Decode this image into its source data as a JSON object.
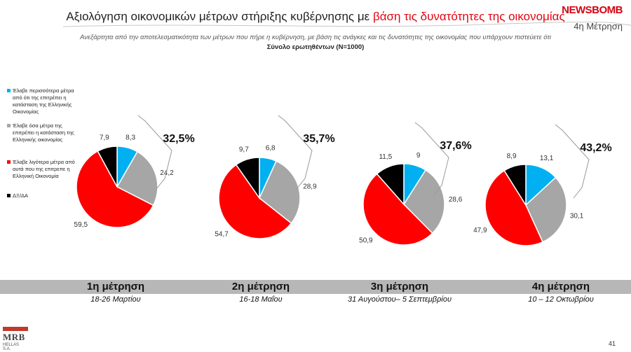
{
  "header": {
    "title_part1": "Αξιολόγηση οικονομικών μέτρων στήριξης κυβέρνησης με",
    "title_part2": "βάση τις δυνατότητες της  οικονομίας",
    "brand": "NEWSBOMB",
    "measurement_tag": "4η Μέτρηση",
    "subtitle": "Ανεξάρτητα από την αποτελεσματικότητα των μέτρων που πήρε η κυβέρνηση, με βάση τις ανάγκες και τις δυνατότητες της  οικονομίας που υπάρχουν  πιστεύετε ότι",
    "base": "Σύνολο ερωτηθέντων (N=1000)"
  },
  "legend": [
    {
      "label": "Έλαβε περισσότερα μέτρα από ότι της επιτρέπει η κατάσταση της Ελληνικής Οικονομίας",
      "color": "#00b0f0"
    },
    {
      "label": "Έλαβε όσα μέτρα της επιτρέπει η κατάσταση της Ελληνικής οικονομίας",
      "color": "#a6a6a6"
    },
    {
      "label": "Έλαβε λιγότερα μέτρα από αυτά που της επιτρεπε η Ελληνική Οικονομία",
      "color": "#ff0000"
    },
    {
      "label": "ΔΞ/ΔΑ",
      "color": "#000000"
    }
  ],
  "chart_data": [
    {
      "type": "pie",
      "categories": [
        "Έλαβε περισσότερα μέτρα",
        "Έλαβε όσα μέτρα",
        "Έλαβε λιγότερα μέτρα",
        "ΔΞ/ΔΑ"
      ],
      "values": [
        8.3,
        24.2,
        59.5,
        7.9
      ],
      "labels": [
        "8,3",
        "24,2",
        "59,5",
        "7,9"
      ],
      "bracket_total": "32,5%"
    },
    {
      "type": "pie",
      "categories": [
        "Έλαβε περισσότερα μέτρα",
        "Έλαβε όσα μέτρα",
        "Έλαβε λιγότερα μέτρα",
        "ΔΞ/ΔΑ"
      ],
      "values": [
        6.8,
        28.9,
        54.7,
        9.7
      ],
      "labels": [
        "6,8",
        "28,9",
        "54,7",
        "9,7"
      ],
      "bracket_total": "35,7%"
    },
    {
      "type": "pie",
      "categories": [
        "Έλαβε περισσότερα μέτρα",
        "Έλαβε όσα μέτρα",
        "Έλαβε λιγότερα μέτρα",
        "ΔΞ/ΔΑ"
      ],
      "values": [
        9,
        28.6,
        50.9,
        11.5
      ],
      "labels": [
        "9",
        "28,6",
        "50,9",
        "11,5"
      ],
      "bracket_total": "37,6%"
    },
    {
      "type": "pie",
      "categories": [
        "Έλαβε περισσότερα μέτρα",
        "Έλαβε όσα μέτρα",
        "Έλαβε λιγότερα μέτρα",
        "ΔΞ/ΔΑ"
      ],
      "values": [
        13.1,
        30.1,
        47.9,
        8.9
      ],
      "labels": [
        "13,1",
        "30,1",
        "47,9",
        "8,9"
      ],
      "bracket_total": "43,2%"
    }
  ],
  "periods": [
    {
      "heading": "1η μέτρηση",
      "dates": "18-26 Μαρτίου"
    },
    {
      "heading": "2η μέτρηση",
      "dates": "16-18 Μαΐου"
    },
    {
      "heading": "3η μέτρηση",
      "dates": "31 Αυγούστου– 5 Σεπτεμβρίου"
    },
    {
      "heading": "4η μέτρηση",
      "dates": "10 – 12 Οκτωβρίου"
    }
  ],
  "footer": {
    "logo_text": "MRB",
    "logo_sub": "HELLAS S.A.",
    "page_number": "41"
  }
}
